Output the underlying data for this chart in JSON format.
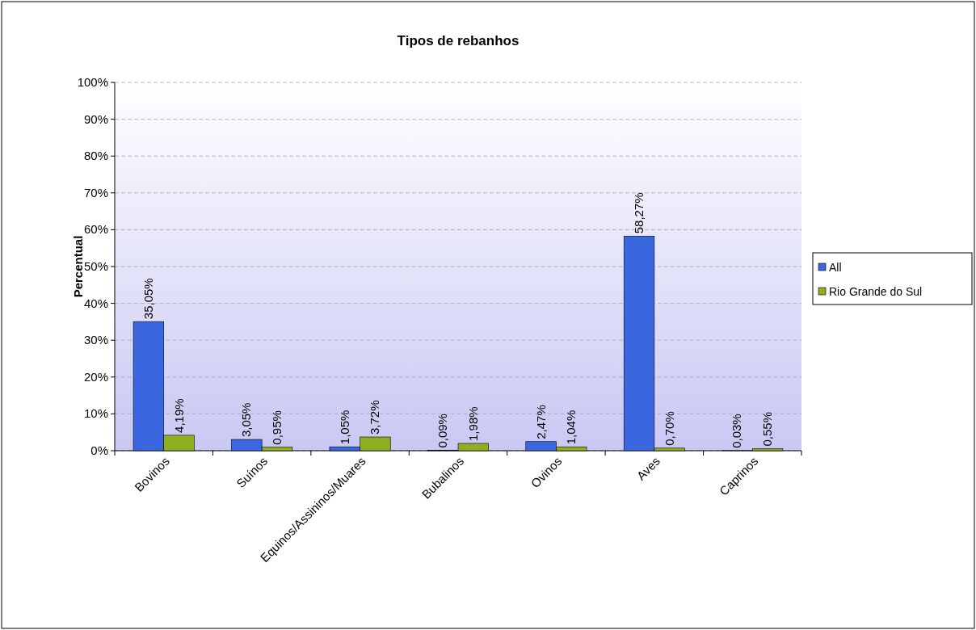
{
  "chart_data": {
    "type": "bar",
    "title": "Tipos de rebanhos",
    "ylabel": "Percentual",
    "categories": [
      "Bovinos",
      "Suínos",
      "Equinos/Assininos/Muares",
      "Bubalinos",
      "Ovinos",
      "Aves",
      "Caprinos"
    ],
    "series": [
      {
        "name": "All",
        "color": "#3a66e0",
        "values": [
          35.05,
          3.05,
          1.05,
          0.09,
          2.47,
          58.27,
          0.03
        ],
        "value_labels": [
          "35,05%",
          "3,05%",
          "1,05%",
          "0,09%",
          "2,47%",
          "58,27%",
          "0,03%"
        ]
      },
      {
        "name": "Rio Grande do Sul",
        "color": "#8db020",
        "values": [
          4.19,
          0.95,
          3.72,
          1.98,
          1.04,
          0.7,
          0.55
        ],
        "value_labels": [
          "4,19%",
          "0,95%",
          "3,72%",
          "1,98%",
          "1,04%",
          "0,70%",
          "0,55%"
        ]
      }
    ],
    "ylim": [
      0,
      100
    ],
    "yticks": [
      {
        "value": 0,
        "label": "0%"
      },
      {
        "value": 10,
        "label": "10%"
      },
      {
        "value": 20,
        "label": "20%"
      },
      {
        "value": 30,
        "label": "30%"
      },
      {
        "value": 40,
        "label": "40%"
      },
      {
        "value": 50,
        "label": "50%"
      },
      {
        "value": 60,
        "label": "60%"
      },
      {
        "value": 70,
        "label": "70%"
      },
      {
        "value": 80,
        "label": "80%"
      },
      {
        "value": 90,
        "label": "90%"
      },
      {
        "value": 100,
        "label": "100%"
      }
    ],
    "grid": "y",
    "legend": "right"
  }
}
